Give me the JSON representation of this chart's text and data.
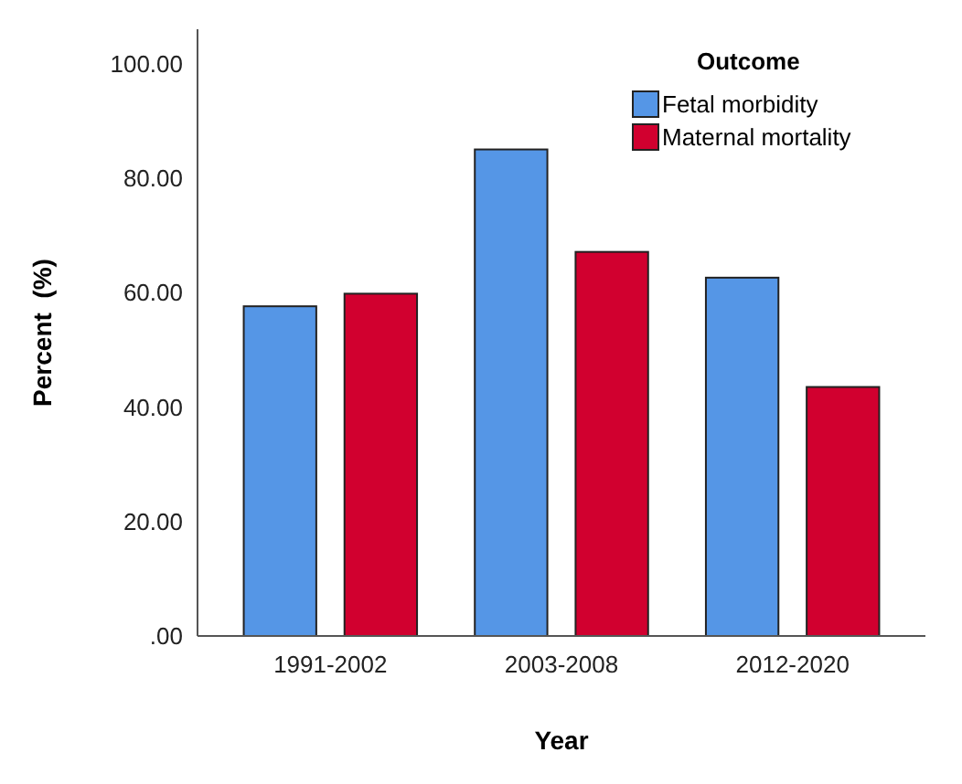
{
  "chart_data": {
    "type": "bar",
    "xlabel": "Year",
    "ylabel": "Percent  (%)",
    "legend_title": "Outcome",
    "categories": [
      "1991-2002",
      "2003-2008",
      "2012-2020"
    ],
    "series": [
      {
        "name": "Fetal morbidity",
        "color": "#5596e6",
        "values": [
          57.6,
          85.0,
          62.6
        ]
      },
      {
        "name": "Maternal mortality",
        "color": "#d1002f",
        "values": [
          59.8,
          67.1,
          43.5
        ]
      }
    ],
    "ylim": [
      0,
      106
    ],
    "yticks": [
      {
        "value": 0,
        "label": ".00"
      },
      {
        "value": 20,
        "label": "20.00"
      },
      {
        "value": 40,
        "label": "40.00"
      },
      {
        "value": 60,
        "label": "60.00"
      },
      {
        "value": 80,
        "label": "80.00"
      },
      {
        "value": 100,
        "label": "100.00"
      }
    ],
    "grid": false,
    "legend": "top right"
  }
}
